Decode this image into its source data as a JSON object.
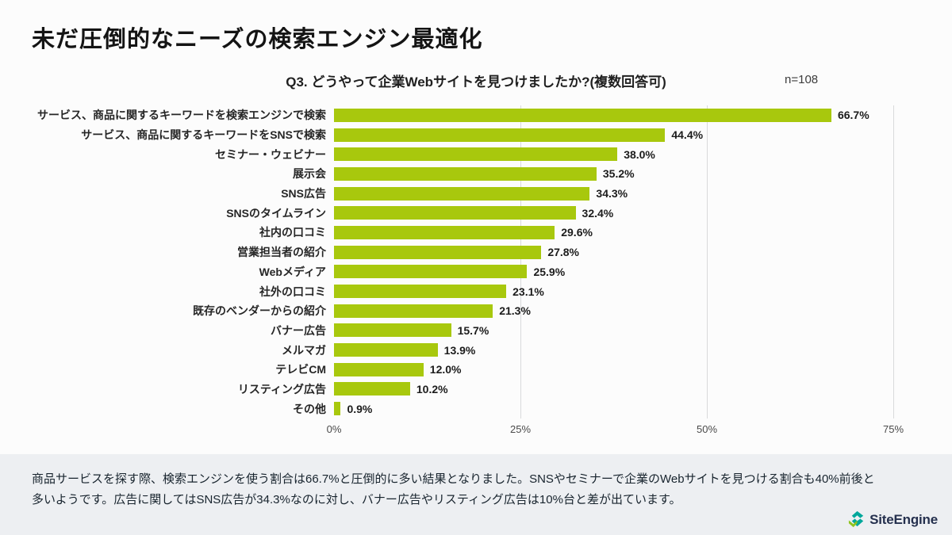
{
  "page": {
    "title": "未だ圧倒的なニーズの検索エンジン最適化",
    "background": "#fcfcfc"
  },
  "chart_data": {
    "type": "bar",
    "orientation": "horizontal",
    "title": "Q3. どうやって企業Webサイトを見つけましたか?(複数回答可)",
    "sample_label": "n=108",
    "categories": [
      "サービス、商品に関するキーワードを検索エンジンで検索",
      "サービス、商品に関するキーワードをSNSで検索",
      "セミナー・ウェビナー",
      "展示会",
      "SNS広告",
      "SNSのタイムライン",
      "社内の口コミ",
      "営業担当者の紹介",
      "Webメディア",
      "社外の口コミ",
      "既存のベンダーからの紹介",
      "バナー広告",
      "メルマガ",
      "テレビCM",
      "リスティング広告",
      "その他"
    ],
    "values": [
      66.7,
      44.4,
      38.0,
      35.2,
      34.3,
      32.4,
      29.6,
      27.8,
      25.9,
      23.1,
      21.3,
      15.7,
      13.9,
      12.0,
      10.2,
      0.9
    ],
    "value_labels": [
      "66.7%",
      "44.4%",
      "38.0%",
      "35.2%",
      "34.3%",
      "32.4%",
      "29.6%",
      "27.8%",
      "25.9%",
      "23.1%",
      "21.3%",
      "15.7%",
      "13.9%",
      "12.0%",
      "10.2%",
      "0.9%"
    ],
    "x_ticks": [
      {
        "value": 0,
        "label": "0%"
      },
      {
        "value": 25,
        "label": "25%"
      },
      {
        "value": 50,
        "label": "50%"
      },
      {
        "value": 75,
        "label": "75%"
      }
    ],
    "xlim": [
      0,
      78.6
    ],
    "bar_color": "#a8c80d",
    "grid": true,
    "legend_position": "none"
  },
  "footer": {
    "lines": [
      "商品サービスを探す際、検索エンジンを使う割合は66.7%と圧倒的に多い結果となりました。SNSやセミナーで企業のWebサイトを見つける割合も40%前後と",
      "多いようです。広告に関してはSNS広告が34.3%なのに対し、バナー広告やリスティング広告は10%台と差が出ています。"
    ],
    "background": "#edeff2"
  },
  "logo": {
    "text": "SiteEngine",
    "icon": "siteengine-logo-icon",
    "teal": "#00a79b",
    "lime": "#8fc31f",
    "navy": "#25304e"
  }
}
